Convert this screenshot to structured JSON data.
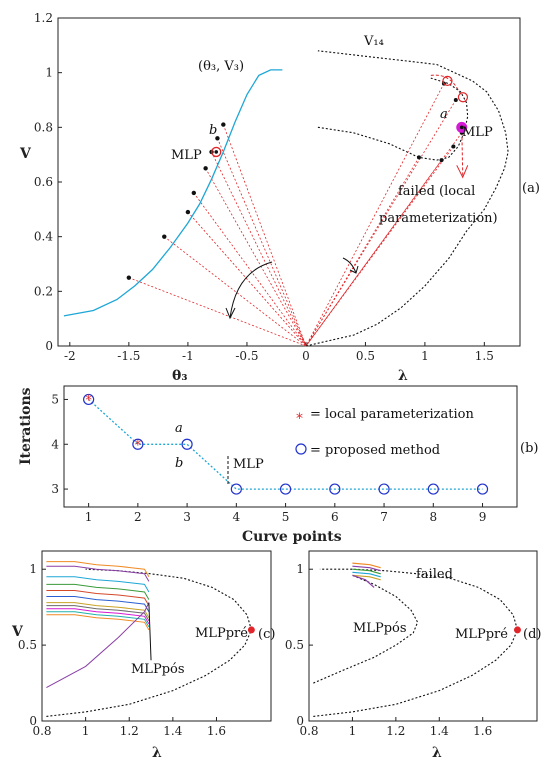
{
  "colors": {
    "blue": "#1ea7d6",
    "red": "#e0262a",
    "magenta": "#d41ad4",
    "marker_blue": "#2233cc",
    "black": "#111111",
    "orange": "#f08a24",
    "purple": "#8a3fa6",
    "green": "#3a9a3a"
  },
  "chart_data": [
    {
      "id": "a",
      "type": "line",
      "panel_label": "(a)",
      "ylabel": "V",
      "left_xlabel": "θ₃",
      "right_xlabel": "λ",
      "ylim": [
        0,
        1.2
      ],
      "yticks": [
        "0",
        "0.2",
        "0.4",
        "0.6",
        "0.8",
        "1",
        "1.2"
      ],
      "left_xlim": [
        -2.1,
        0
      ],
      "left_xticks": [
        "-2",
        "-1.5",
        "-1",
        "-0.5"
      ],
      "right_xlim": [
        0,
        1.8
      ],
      "right_xticks": [
        "0",
        "0.5",
        "1",
        "1.5"
      ],
      "theta_curve": {
        "label": "(θ₃, V₃)",
        "x": [
          -2.05,
          -1.8,
          -1.6,
          -1.45,
          -1.3,
          -1.15,
          -1.0,
          -0.9,
          -0.8,
          -0.7,
          -0.6,
          -0.5,
          -0.4,
          -0.3,
          -0.2
        ],
        "y": [
          0.11,
          0.13,
          0.17,
          0.22,
          0.28,
          0.36,
          0.45,
          0.52,
          0.61,
          0.71,
          0.82,
          0.92,
          0.99,
          1.01,
          1.01
        ]
      },
      "theta_points": {
        "x": [
          -1.5,
          -1.2,
          -1.0,
          -0.95,
          -0.85,
          -0.8,
          -0.75,
          -0.7
        ],
        "y": [
          0.25,
          0.4,
          0.49,
          0.56,
          0.65,
          0.71,
          0.76,
          0.81
        ]
      },
      "pv_curve": {
        "label": "V₁₄",
        "x": [
          0.0,
          0.2,
          0.4,
          0.6,
          0.8,
          1.0,
          1.2,
          1.35,
          1.5,
          1.6,
          1.67,
          1.7,
          1.68,
          1.62,
          1.52,
          1.4,
          1.25,
          1.1,
          0.9,
          0.7,
          0.5,
          0.3,
          0.1
        ],
        "y": [
          0.0,
          0.02,
          0.04,
          0.08,
          0.14,
          0.22,
          0.32,
          0.42,
          0.5,
          0.58,
          0.65,
          0.71,
          0.78,
          0.86,
          0.93,
          0.97,
          1.0,
          1.03,
          1.04,
          1.05,
          1.06,
          1.07,
          1.08
        ]
      },
      "inner_curve": {
        "x": [
          0.1,
          0.4,
          0.7,
          0.95,
          1.1,
          1.2,
          1.28,
          1.33,
          1.36,
          1.35,
          1.3,
          1.2,
          1.05
        ],
        "y": [
          0.8,
          0.78,
          0.74,
          0.69,
          0.68,
          0.69,
          0.73,
          0.78,
          0.84,
          0.89,
          0.93,
          0.96,
          0.98
        ]
      },
      "pv_points": {
        "x": [
          0.95,
          1.14,
          1.24,
          1.31,
          1.26,
          1.16
        ],
        "y": [
          0.69,
          0.68,
          0.73,
          0.78,
          0.9,
          0.96
        ]
      },
      "fan_target": {
        "x": 0.0,
        "y": 0.0
      },
      "annotations": {
        "mlp_left": "MLP",
        "mlp_right": "MLP",
        "point_a": "a",
        "point_b": "b",
        "failed_line1": "failed (local",
        "failed_line2": "parameterization)"
      }
    },
    {
      "id": "b",
      "type": "line",
      "panel_label": "(b)",
      "xlabel": "Curve points",
      "ylabel": "Iterations",
      "xlim": [
        0.5,
        9.7
      ],
      "ylim": [
        2.6,
        5.3
      ],
      "xticks": [
        "1",
        "2",
        "3",
        "4",
        "5",
        "6",
        "7",
        "8",
        "9"
      ],
      "yticks": [
        "3",
        "4",
        "5"
      ],
      "series": [
        {
          "name": "= proposed method",
          "x": [
            1,
            2,
            3,
            4,
            5,
            6,
            7,
            8,
            9
          ],
          "y": [
            5,
            4,
            4,
            3,
            3,
            3,
            3,
            3,
            3
          ]
        },
        {
          "name": "= local parameterization",
          "x": [
            1,
            2
          ],
          "y": [
            5,
            4
          ]
        }
      ],
      "annotations": {
        "point_a": "a",
        "point_b": "b",
        "mlp": "MLP"
      }
    },
    {
      "id": "c",
      "type": "line",
      "panel_label": "(c)",
      "xlabel": "λ",
      "ylabel": "V",
      "xlim": [
        0.8,
        1.85
      ],
      "ylim": [
        0,
        1.12
      ],
      "xticks": [
        "0.8",
        "1",
        "1.2",
        "1.4",
        "1.6"
      ],
      "yticks": [
        "0",
        "0.5",
        "1"
      ],
      "pv_curve": {
        "x": [
          0.82,
          1.0,
          1.2,
          1.4,
          1.55,
          1.66,
          1.73,
          1.76,
          1.74,
          1.68,
          1.58,
          1.45,
          1.3,
          1.15,
          1.0
        ],
        "y": [
          0.03,
          0.06,
          0.11,
          0.2,
          0.3,
          0.4,
          0.5,
          0.6,
          0.7,
          0.8,
          0.88,
          0.94,
          0.97,
          0.99,
          1.0
        ]
      },
      "mlp_pre_point": {
        "x": 1.76,
        "y": 0.6
      },
      "annotations": {
        "mlp_pre": "MLPpré",
        "mlp_pos": "MLPpós"
      }
    },
    {
      "id": "d",
      "type": "line",
      "panel_label": "(d)",
      "xlabel": "λ",
      "ylabel": "",
      "xlim": [
        0.8,
        1.85
      ],
      "ylim": [
        0,
        1.12
      ],
      "xticks": [
        "0.8",
        "1",
        "1.2",
        "1.4",
        "1.6"
      ],
      "yticks": [
        "0",
        "0.5",
        "1"
      ],
      "pv_curve": {
        "x": [
          0.82,
          1.0,
          1.2,
          1.4,
          1.55,
          1.66,
          1.73,
          1.76,
          1.74,
          1.68,
          1.58,
          1.45,
          1.3,
          1.15,
          1.0,
          0.85
        ],
        "y": [
          0.03,
          0.06,
          0.11,
          0.2,
          0.3,
          0.4,
          0.5,
          0.6,
          0.7,
          0.8,
          0.88,
          0.94,
          0.97,
          0.99,
          1.0,
          1.0
        ]
      },
      "inner_curve": {
        "x": [
          0.82,
          0.95,
          1.1,
          1.2,
          1.28,
          1.3,
          1.27,
          1.2,
          1.1,
          1.0
        ],
        "y": [
          0.25,
          0.33,
          0.42,
          0.5,
          0.58,
          0.65,
          0.73,
          0.82,
          0.9,
          0.96
        ]
      },
      "mlp_pre_point": {
        "x": 1.76,
        "y": 0.6
      },
      "annotations": {
        "failed": "failed",
        "mlp_pos": "MLPpós",
        "mlp_pre": "MLPpré"
      }
    }
  ]
}
